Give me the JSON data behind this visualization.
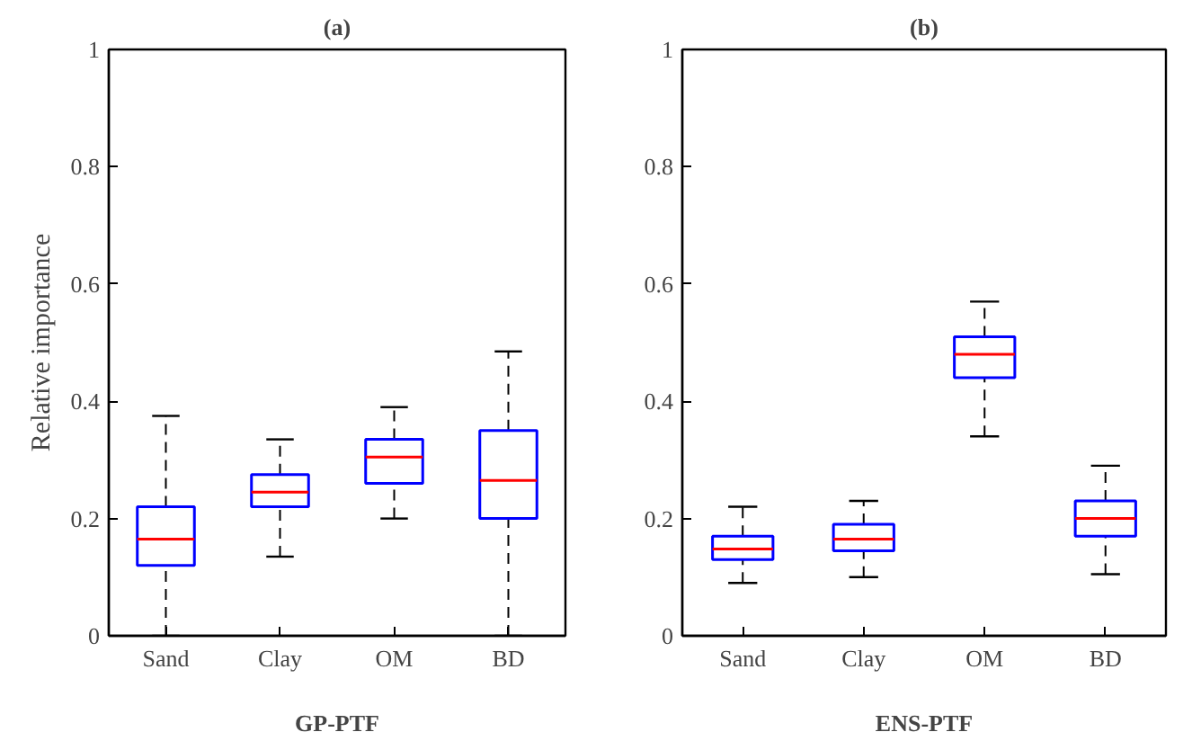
{
  "chart_data": [
    {
      "type": "box",
      "title": "(a)",
      "xlabel": "GP-PTF",
      "ylabel": "Relative importance",
      "categories": [
        "Sand",
        "Clay",
        "OM",
        "BD"
      ],
      "ylim": [
        0,
        1
      ],
      "yticks": [
        0,
        0.2,
        0.4,
        0.6,
        0.8,
        1
      ],
      "grid": false,
      "color": "#0000ff",
      "boxes": [
        {
          "low": 0,
          "q1": 0.12,
          "median": 0.165,
          "q3": 0.22,
          "high": 0.375
        },
        {
          "low": 0.135,
          "q1": 0.22,
          "median": 0.245,
          "q3": 0.275,
          "high": 0.335
        },
        {
          "low": 0.2,
          "q1": 0.26,
          "median": 0.305,
          "q3": 0.335,
          "high": 0.39
        },
        {
          "low": 0,
          "q1": 0.2,
          "median": 0.265,
          "q3": 0.35,
          "high": 0.485
        }
      ]
    },
    {
      "type": "box",
      "title": "(b)",
      "xlabel": "ENS-PTF",
      "categories": [
        "Sand",
        "Clay",
        "OM",
        "BD"
      ],
      "ylim": [
        0,
        1
      ],
      "yticks": [
        0,
        0.2,
        0.4,
        0.6,
        0.8,
        1
      ],
      "grid": false,
      "color": "#0000ff",
      "boxes": [
        {
          "low": 0.09,
          "q1": 0.13,
          "median": 0.148,
          "q3": 0.17,
          "high": 0.22
        },
        {
          "low": 0.1,
          "q1": 0.145,
          "median": 0.165,
          "q3": 0.19,
          "high": 0.23
        },
        {
          "low": 0.34,
          "q1": 0.44,
          "median": 0.48,
          "q3": 0.51,
          "high": 0.57
        },
        {
          "low": 0.105,
          "q1": 0.17,
          "median": 0.2,
          "q3": 0.23,
          "high": 0.29
        }
      ]
    }
  ]
}
